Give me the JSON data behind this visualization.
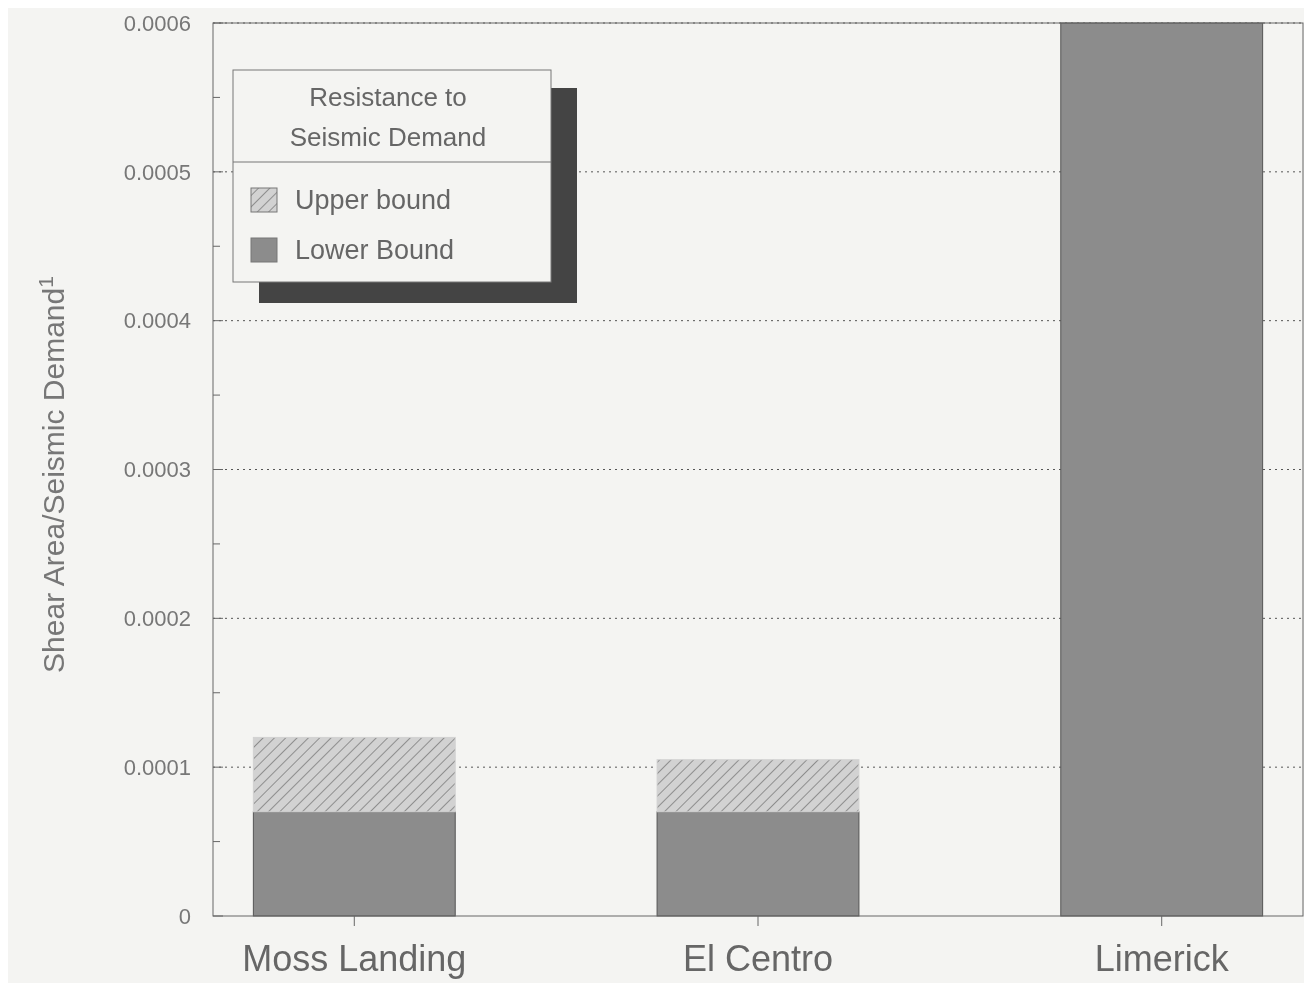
{
  "chart_data": {
    "type": "bar",
    "ylabel": "Shear Area/Seismic Demand$^{1}$",
    "legend_title": "Resistance to Seismic Demand",
    "categories": [
      "Moss Landing",
      "El Centro",
      "Limerick"
    ],
    "stacked": true,
    "series": [
      {
        "name": "Lower Bound",
        "color": "#8c8c8c",
        "values": [
          7e-05,
          7e-05,
          0.0006
        ]
      },
      {
        "name": "Upper bound",
        "color": "#d2d2d2",
        "values": [
          5e-05,
          3.5e-05,
          0
        ]
      }
    ],
    "ylim": [
      0,
      0.0006
    ],
    "yticks": [
      0,
      {
        "value": 5e-05,
        "label": null
      },
      0.0001,
      {
        "value": 0.00015,
        "label": null
      },
      0.0002,
      {
        "value": 0.00025,
        "label": null
      },
      0.0003,
      {
        "value": 0.00035,
        "label": null
      },
      0.0004,
      {
        "value": 0.00045,
        "label": null
      },
      0.0005,
      {
        "value": 0.00055,
        "label": null
      },
      0.0006
    ],
    "grid": "y",
    "legend": "top left"
  }
}
